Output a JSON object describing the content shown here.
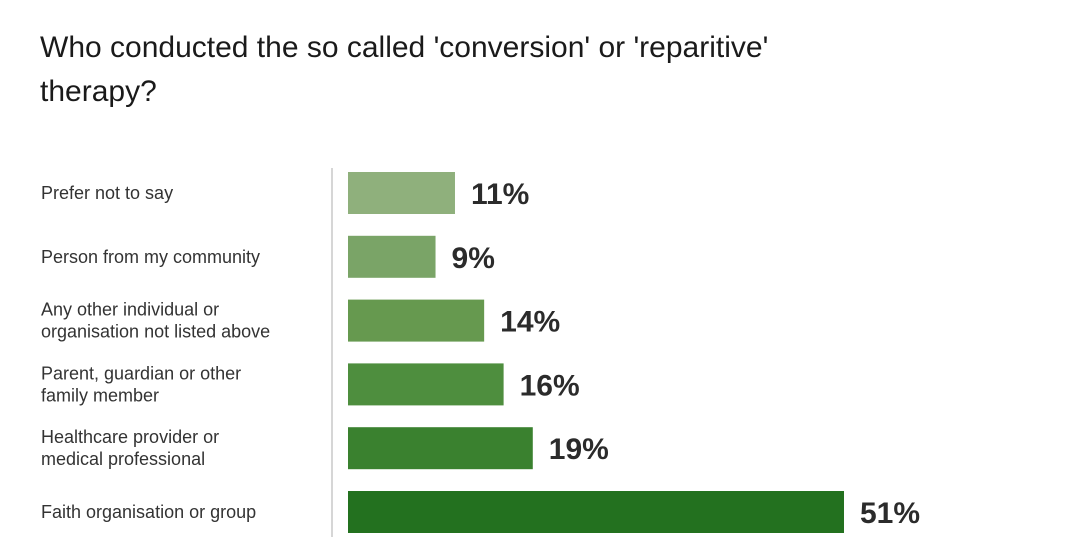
{
  "chart_data": {
    "type": "bar",
    "orientation": "horizontal",
    "title": "Who conducted the so called 'conversion' or 'reparitive' therapy?",
    "categories": [
      [
        "Prefer not to say"
      ],
      [
        "Person from my community"
      ],
      [
        "Any other individual or",
        "organisation not listed above"
      ],
      [
        "Parent, guardian or other",
        "family member"
      ],
      [
        "Healthcare provider or",
        "medical professional"
      ],
      [
        "Faith organisation or group"
      ]
    ],
    "values": [
      11,
      9,
      14,
      16,
      19,
      51
    ],
    "value_labels": [
      "11%",
      "9%",
      "14%",
      "16%",
      "19%",
      "51%"
    ],
    "unit": "%",
    "xlim": [
      0,
      51
    ],
    "grid": false,
    "legend": "none",
    "colors": [
      "#8fb07c",
      "#7aa467",
      "#66994f",
      "#4e8e3e",
      "#3a812f",
      "#23711f"
    ]
  }
}
